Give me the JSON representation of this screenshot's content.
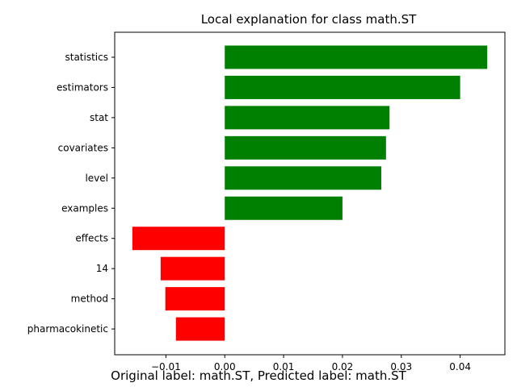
{
  "chart_data": {
    "type": "bar",
    "orientation": "horizontal",
    "title": "Local explanation for class math.ST",
    "xlabel": "",
    "ylabel": "",
    "categories": [
      "statistics",
      "estimators",
      "stat",
      "covariates",
      "level",
      "examples",
      "effects",
      "14",
      "method",
      "pharmacokinetic"
    ],
    "values": [
      0.0446,
      0.04,
      0.028,
      0.0274,
      0.0266,
      0.02,
      -0.0157,
      -0.0109,
      -0.0101,
      -0.0083
    ],
    "xlim": [
      -0.0187,
      0.0476
    ],
    "xticks": [
      -0.01,
      0.0,
      0.01,
      0.02,
      0.03,
      0.04
    ],
    "xtick_labels": [
      "−0.01",
      "0.00",
      "0.01",
      "0.02",
      "0.03",
      "0.04"
    ],
    "grid": false,
    "colors": {
      "positive": "#008000",
      "negative": "#ff0000"
    }
  },
  "caption": "Original label: math.ST, Predicted label: math.ST"
}
